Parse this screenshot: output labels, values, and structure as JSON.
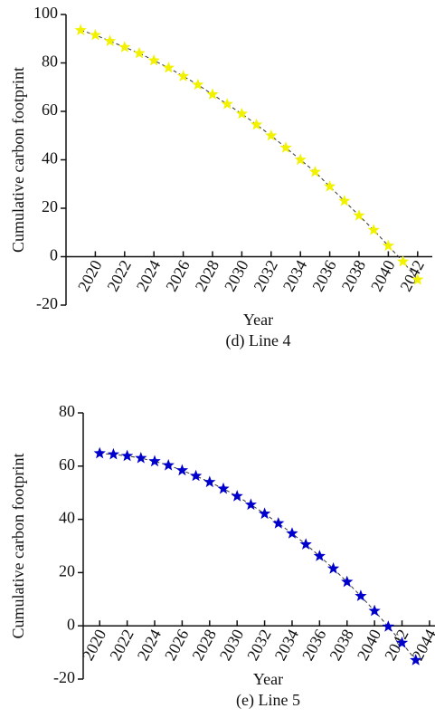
{
  "chart_data": [
    {
      "type": "line",
      "caption": "(d) Line 4",
      "xlabel": "Year",
      "ylabel": "Cumulative carbon footprint",
      "x": [
        2019,
        2020,
        2021,
        2022,
        2023,
        2024,
        2025,
        2026,
        2027,
        2028,
        2029,
        2030,
        2031,
        2032,
        2033,
        2034,
        2035,
        2036,
        2037,
        2038,
        2039,
        2040,
        2041,
        2042
      ],
      "series": [
        {
          "color": "#f2f200",
          "values": [
            93.5,
            91.5,
            89,
            86.5,
            84,
            81,
            78,
            74.5,
            71,
            67,
            63,
            59,
            54.5,
            50,
            45,
            40,
            35,
            29,
            23,
            17,
            11,
            4.5,
            -2,
            -9.5
          ]
        }
      ],
      "xlim": [
        2018,
        2043
      ],
      "xticks": [
        2020,
        2022,
        2024,
        2026,
        2028,
        2030,
        2032,
        2034,
        2036,
        2038,
        2040,
        2042
      ],
      "ylim": [
        -20,
        100
      ],
      "yticks": [
        -20,
        0,
        20,
        40,
        60,
        80,
        100
      ]
    },
    {
      "type": "line",
      "caption": "(e) Line 5",
      "xlabel": "Year",
      "ylabel": "Cumulative carbon footprint",
      "x": [
        2020,
        2021,
        2022,
        2023,
        2024,
        2025,
        2026,
        2027,
        2028,
        2029,
        2030,
        2031,
        2032,
        2033,
        2034,
        2035,
        2036,
        2037,
        2038,
        2039,
        2040,
        2041,
        2042,
        2043
      ],
      "series": [
        {
          "color": "#0000cc",
          "values": [
            64.8,
            64.4,
            63.8,
            63.0,
            61.8,
            60.3,
            58.4,
            56.3,
            54.0,
            51.5,
            48.7,
            45.5,
            42.1,
            38.5,
            34.7,
            30.6,
            26.2,
            21.5,
            16.5,
            11.2,
            5.6,
            -0.3,
            -6.4,
            -12.9
          ]
        }
      ],
      "xlim": [
        2018.8,
        2044.4
      ],
      "xticks": [
        2020,
        2022,
        2024,
        2026,
        2028,
        2030,
        2032,
        2034,
        2036,
        2038,
        2040,
        2042,
        2044
      ],
      "ylim": [
        -20,
        80
      ],
      "yticks": [
        -20,
        0,
        20,
        40,
        60,
        80
      ]
    }
  ]
}
